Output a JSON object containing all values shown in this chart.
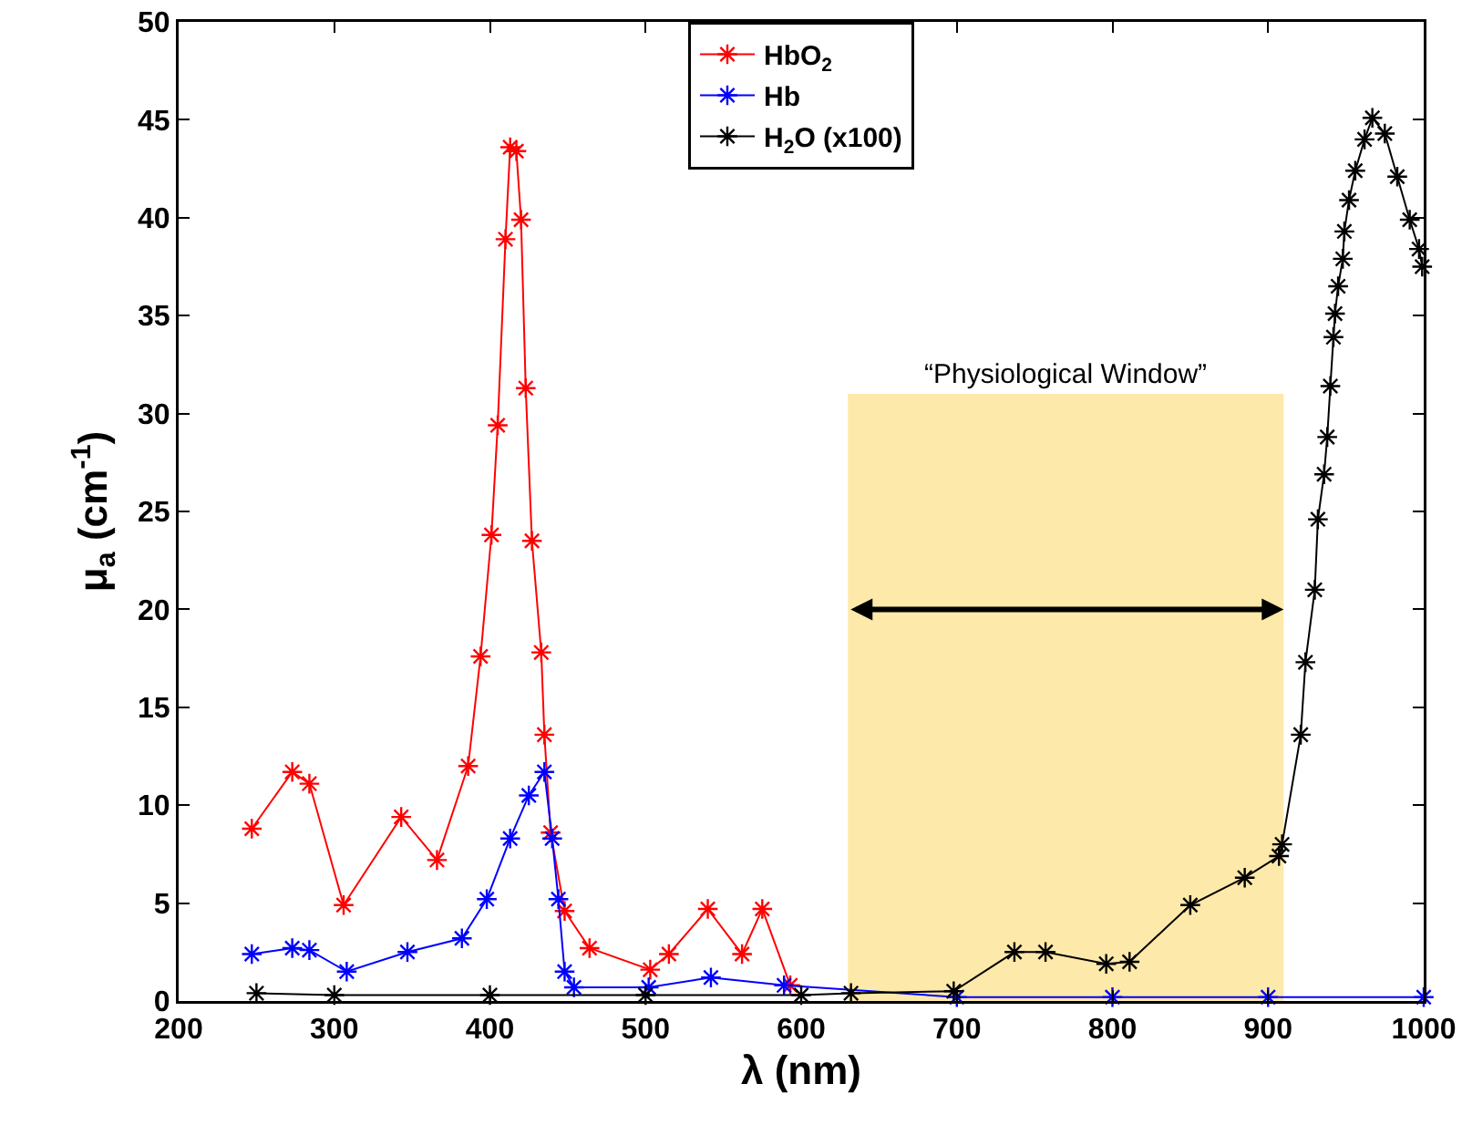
{
  "chart_data": {
    "type": "line",
    "xlabel": "λ (nm)",
    "ylabel": "μ$_{a}$ (cm$^{-1}$)",
    "xlim": [
      200,
      1000
    ],
    "xticks": [
      200,
      300,
      400,
      500,
      600,
      700,
      800,
      900,
      1000
    ],
    "ylim": [
      0,
      50
    ],
    "yticks": [
      0,
      5,
      10,
      15,
      20,
      25,
      30,
      35,
      40,
      45,
      50
    ],
    "grid": false,
    "legend": "top",
    "marker": "cross",
    "line_style": "solid",
    "bands": [
      {
        "axis": "x",
        "from": 630,
        "to": 910,
        "color": "#fde9a9"
      }
    ],
    "annotations": [
      {
        "text": "“Physiological Window”",
        "x": 770,
        "y": 31
      }
    ],
    "series": [
      {
        "name": "HbO$_{2}$",
        "color": "#ff0000",
        "x": [
          247,
          273,
          284,
          306,
          343,
          366,
          386,
          394,
          401,
          405,
          410,
          413,
          417,
          420,
          423,
          427,
          433,
          435,
          439,
          448,
          464,
          503,
          515,
          540,
          562,
          575,
          593
        ],
        "values": [
          8.8,
          11.7,
          11.1,
          4.9,
          9.4,
          7.2,
          12.0,
          17.6,
          23.8,
          29.4,
          38.9,
          43.6,
          43.4,
          39.9,
          31.3,
          23.5,
          17.8,
          13.6,
          8.6,
          4.6,
          2.7,
          1.6,
          2.4,
          4.7,
          2.4,
          4.7,
          0.8
        ]
      },
      {
        "name": "Hb",
        "color": "#0000ff",
        "x": [
          247,
          273,
          284,
          308,
          347,
          382,
          398,
          413,
          425,
          435,
          440,
          444,
          448,
          454,
          502,
          542,
          589,
          700,
          800,
          900,
          1000
        ],
        "values": [
          2.4,
          2.7,
          2.6,
          1.5,
          2.5,
          3.2,
          5.2,
          8.3,
          10.5,
          11.7,
          8.3,
          5.2,
          1.5,
          0.7,
          0.7,
          1.2,
          0.8,
          0.2,
          0.2,
          0.2,
          0.2
        ]
      },
      {
        "name": "H$_{2}$O (x100)",
        "color": "#000000",
        "x": [
          250,
          300,
          400,
          500,
          600,
          632,
          698,
          737,
          757,
          796,
          811,
          850,
          885,
          907,
          909,
          921,
          924,
          930,
          932,
          936,
          938,
          940,
          942,
          943,
          945,
          948,
          949,
          952,
          956,
          962,
          967,
          975,
          983,
          991,
          997,
          999
        ],
        "values": [
          0.4,
          0.3,
          0.3,
          0.3,
          0.3,
          0.4,
          0.5,
          2.5,
          2.5,
          1.9,
          2.0,
          4.9,
          6.3,
          7.4,
          8.0,
          13.6,
          17.3,
          21.0,
          24.6,
          26.9,
          28.8,
          31.4,
          33.9,
          35.1,
          36.5,
          37.9,
          39.3,
          40.9,
          42.4,
          44.0,
          45.1,
          44.3,
          42.1,
          39.9,
          38.4,
          37.5
        ]
      }
    ]
  }
}
